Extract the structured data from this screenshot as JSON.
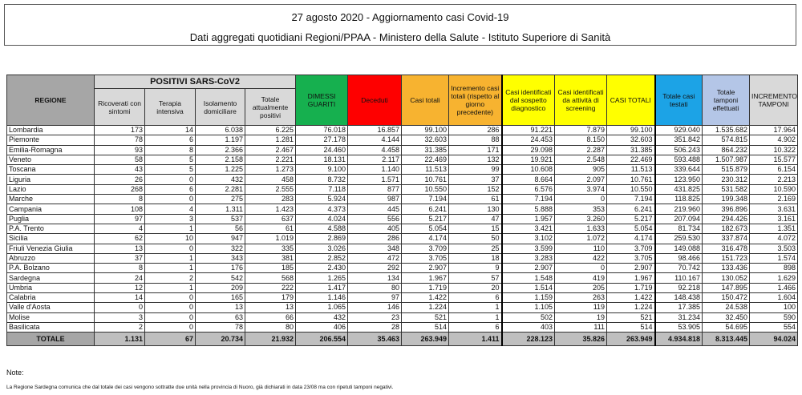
{
  "title": {
    "line1": "27 agosto 2020 - Aggiornamento casi Covid-19",
    "line2": "Dati aggregati quotidiani Regioni/PPAA - Ministero della Salute - Istituto Superiore di Sanità"
  },
  "headers": {
    "regione": "REGIONE",
    "positivi": "POSITIVI SARS-CoV2",
    "ricoverati": "Ricoverati con sintomi",
    "terapia": "Terapia intensiva",
    "isolamento": "Isolamento domiciliare",
    "totale_pos": "Totale attualmente positivi",
    "dimessi": "DIMESSI GUARITI",
    "deceduti": "Deceduti",
    "casi_totali": "Casi totali",
    "incremento": "Incremento casi totali (rispetto al giorno precedente)",
    "sospetto": "Casi identificati dal sospetto diagnostico",
    "screening": "Casi identificati da attività di screening",
    "casi_totali2": "CASI TOTALI",
    "testati": "Totale casi testati",
    "tamponi": "Totale tamponi effettuati",
    "incr_tamponi": "INCREMENTO TAMPONI"
  },
  "colors": {
    "dimessi": "#16b04f",
    "deceduti": "#fe0000",
    "casi_totali": "#f7b330",
    "screening": "#ffff00",
    "testati": "#1ca3e6",
    "tamponi": "#b4c6e7"
  },
  "rows": [
    [
      "Lombardia",
      "173",
      "14",
      "6.038",
      "6.225",
      "76.018",
      "16.857",
      "99.100",
      "286",
      "91.221",
      "7.879",
      "99.100",
      "929.040",
      "1.535.682",
      "17.964"
    ],
    [
      "Piemonte",
      "78",
      "6",
      "1.197",
      "1.281",
      "27.178",
      "4.144",
      "32.603",
      "88",
      "24.453",
      "8.150",
      "32.603",
      "351.842",
      "574.815",
      "4.902"
    ],
    [
      "Emilia-Romagna",
      "93",
      "8",
      "2.366",
      "2.467",
      "24.460",
      "4.458",
      "31.385",
      "171",
      "29.098",
      "2.287",
      "31.385",
      "506.243",
      "864.232",
      "10.322"
    ],
    [
      "Veneto",
      "58",
      "5",
      "2.158",
      "2.221",
      "18.131",
      "2.117",
      "22.469",
      "132",
      "19.921",
      "2.548",
      "22.469",
      "593.488",
      "1.507.987",
      "15.577"
    ],
    [
      "Toscana",
      "43",
      "5",
      "1.225",
      "1.273",
      "9.100",
      "1.140",
      "11.513",
      "99",
      "10.608",
      "905",
      "11.513",
      "339.644",
      "515.879",
      "6.154"
    ],
    [
      "Liguria",
      "26",
      "0",
      "432",
      "458",
      "8.732",
      "1.571",
      "10.761",
      "37",
      "8.664",
      "2.097",
      "10.761",
      "123.950",
      "230.312",
      "2.213"
    ],
    [
      "Lazio",
      "268",
      "6",
      "2.281",
      "2.555",
      "7.118",
      "877",
      "10.550",
      "152",
      "6.576",
      "3.974",
      "10.550",
      "431.825",
      "531.582",
      "10.590"
    ],
    [
      "Marche",
      "8",
      "0",
      "275",
      "283",
      "5.924",
      "987",
      "7.194",
      "61",
      "7.194",
      "0",
      "7.194",
      "118.825",
      "199.348",
      "2.169"
    ],
    [
      "Campania",
      "108",
      "4",
      "1.311",
      "1.423",
      "4.373",
      "445",
      "6.241",
      "130",
      "5.888",
      "353",
      "6.241",
      "219.960",
      "396.896",
      "3.631"
    ],
    [
      "Puglia",
      "97",
      "3",
      "537",
      "637",
      "4.024",
      "556",
      "5.217",
      "47",
      "1.957",
      "3.260",
      "5.217",
      "207.094",
      "294.426",
      "3.161"
    ],
    [
      "P.A. Trento",
      "4",
      "1",
      "56",
      "61",
      "4.588",
      "405",
      "5.054",
      "15",
      "3.421",
      "1.633",
      "5.054",
      "81.734",
      "182.673",
      "1.351"
    ],
    [
      "Sicilia",
      "62",
      "10",
      "947",
      "1.019",
      "2.869",
      "286",
      "4.174",
      "50",
      "3.102",
      "1.072",
      "4.174",
      "259.530",
      "337.874",
      "4.072"
    ],
    [
      "Friuli Venezia Giulia",
      "13",
      "0",
      "322",
      "335",
      "3.026",
      "348",
      "3.709",
      "25",
      "3.599",
      "110",
      "3.709",
      "149.088",
      "316.478",
      "3.503"
    ],
    [
      "Abruzzo",
      "37",
      "1",
      "343",
      "381",
      "2.852",
      "472",
      "3.705",
      "18",
      "3.283",
      "422",
      "3.705",
      "98.466",
      "151.723",
      "1.574"
    ],
    [
      "P.A. Bolzano",
      "8",
      "1",
      "176",
      "185",
      "2.430",
      "292",
      "2.907",
      "9",
      "2.907",
      "0",
      "2.907",
      "70.742",
      "133.436",
      "898"
    ],
    [
      "Sardegna",
      "24",
      "2",
      "542",
      "568",
      "1.265",
      "134",
      "1.967",
      "57",
      "1.548",
      "419",
      "1.967",
      "110.167",
      "130.052",
      "1.629"
    ],
    [
      "Umbria",
      "12",
      "1",
      "209",
      "222",
      "1.417",
      "80",
      "1.719",
      "20",
      "1.514",
      "205",
      "1.719",
      "92.218",
      "147.895",
      "1.466"
    ],
    [
      "Calabria",
      "14",
      "0",
      "165",
      "179",
      "1.146",
      "97",
      "1.422",
      "6",
      "1.159",
      "263",
      "1.422",
      "148.438",
      "150.472",
      "1.604"
    ],
    [
      "Valle d'Aosta",
      "0",
      "0",
      "13",
      "13",
      "1.065",
      "146",
      "1.224",
      "1",
      "1.105",
      "119",
      "1.224",
      "17.385",
      "24.538",
      "100"
    ],
    [
      "Molise",
      "3",
      "0",
      "63",
      "66",
      "432",
      "23",
      "521",
      "1",
      "502",
      "19",
      "521",
      "31.234",
      "32.450",
      "590"
    ],
    [
      "Basilicata",
      "2",
      "0",
      "78",
      "80",
      "406",
      "28",
      "514",
      "6",
      "403",
      "111",
      "514",
      "53.905",
      "54.695",
      "554"
    ]
  ],
  "totale": [
    "TOTALE",
    "1.131",
    "67",
    "20.734",
    "21.932",
    "206.554",
    "35.463",
    "263.949",
    "1.411",
    "228.123",
    "35.826",
    "263.949",
    "4.934.818",
    "8.313.445",
    "94.024"
  ],
  "note": {
    "label": "Note:",
    "text": "La Regione Sardegna comunica che dal totale dei casi vengono sottratte due unità nella provincia di Nuoro, già dichiarati in data 23/08 ma con ripetuti tamponi negativi."
  }
}
